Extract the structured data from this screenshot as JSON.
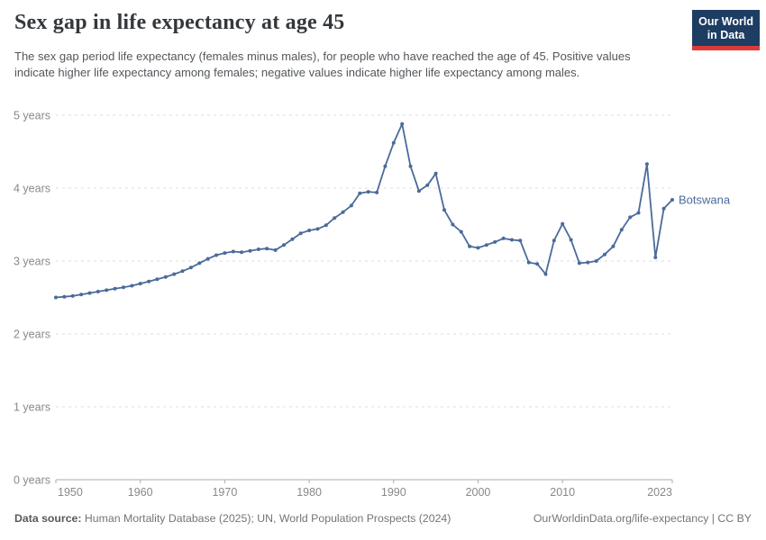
{
  "header": {
    "title": "Sex gap in life expectancy at age 45",
    "subtitle": "The sex gap period life expectancy (females minus males), for people who have reached the age of 45. Positive values indicate higher life expectancy among females; negative values indicate higher life expectancy among males.",
    "logo": {
      "line1": "Our World",
      "line2": "in Data",
      "bg_color": "#1d3d63",
      "accent_color": "#dc3b37"
    }
  },
  "chart_data": {
    "type": "line",
    "title": "Sex gap in life expectancy at age 45",
    "xlabel": "",
    "ylabel": "years",
    "xlim": [
      1950,
      2023
    ],
    "ylim": [
      0,
      5
    ],
    "grid": "horizontal-dashed",
    "legend_position": "end-of-line-label",
    "end_label": "Botswana",
    "yticks": [
      {
        "value": 0,
        "label": "0 years"
      },
      {
        "value": 1,
        "label": "1 years"
      },
      {
        "value": 2,
        "label": "2 years"
      },
      {
        "value": 3,
        "label": "3 years"
      },
      {
        "value": 4,
        "label": "4 years"
      },
      {
        "value": 5,
        "label": "5 years"
      }
    ],
    "xticks": [
      1950,
      1960,
      1970,
      1980,
      1990,
      2000,
      2010,
      2023
    ],
    "series": [
      {
        "name": "Botswana",
        "color": "#4b6a9b",
        "x": [
          1950,
          1951,
          1952,
          1953,
          1954,
          1955,
          1956,
          1957,
          1958,
          1959,
          1960,
          1961,
          1962,
          1963,
          1964,
          1965,
          1966,
          1967,
          1968,
          1969,
          1970,
          1971,
          1972,
          1973,
          1974,
          1975,
          1976,
          1977,
          1978,
          1979,
          1980,
          1981,
          1982,
          1983,
          1984,
          1985,
          1986,
          1987,
          1988,
          1989,
          1990,
          1991,
          1992,
          1993,
          1994,
          1995,
          1996,
          1997,
          1998,
          1999,
          2000,
          2001,
          2002,
          2003,
          2004,
          2005,
          2006,
          2007,
          2008,
          2009,
          2010,
          2011,
          2012,
          2013,
          2014,
          2015,
          2016,
          2017,
          2018,
          2019,
          2020,
          2021,
          2022,
          2023
        ],
        "values": [
          2.5,
          2.51,
          2.52,
          2.54,
          2.56,
          2.58,
          2.6,
          2.62,
          2.64,
          2.66,
          2.69,
          2.72,
          2.75,
          2.78,
          2.82,
          2.86,
          2.91,
          2.97,
          3.03,
          3.08,
          3.11,
          3.13,
          3.12,
          3.14,
          3.16,
          3.17,
          3.15,
          3.22,
          3.3,
          3.38,
          3.42,
          3.44,
          3.49,
          3.59,
          3.67,
          3.76,
          3.93,
          3.95,
          3.94,
          4.3,
          4.62,
          4.88,
          4.3,
          3.96,
          4.04,
          4.2,
          3.7,
          3.5,
          3.4,
          3.2,
          3.18,
          3.22,
          3.26,
          3.31,
          3.29,
          3.28,
          2.98,
          2.96,
          2.82,
          3.28,
          3.51,
          3.29,
          2.97,
          2.98,
          3.0,
          3.09,
          3.2,
          3.43,
          3.6,
          3.66,
          4.33,
          3.05,
          3.72,
          3.84
        ]
      }
    ]
  },
  "footer": {
    "datasource_label": "Data source:",
    "datasource_text": " Human Mortality Database (2025); UN, World Population Prospects (2024)",
    "link_text": "OurWorldinData.org/life-expectancy | CC BY"
  }
}
